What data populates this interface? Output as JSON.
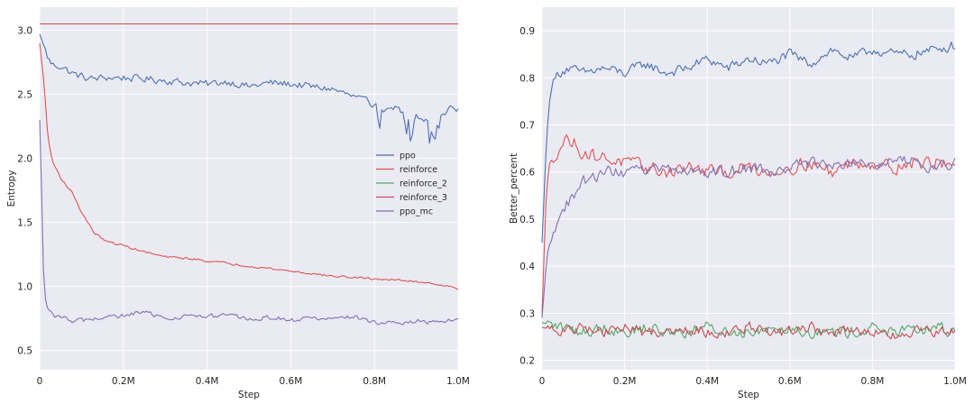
{
  "chart_data": [
    {
      "type": "line",
      "title": "",
      "xlabel": "Step",
      "ylabel": "Entropy",
      "xlim": [
        0,
        1000000
      ],
      "ylim": [
        0.35,
        3.18
      ],
      "xticks": [
        0,
        200000,
        400000,
        600000,
        800000,
        1000000
      ],
      "xtick_labels": [
        "0",
        "0.2M",
        "0.4M",
        "0.6M",
        "0.8M",
        "1.0M"
      ],
      "yticks": [
        0.5,
        1.0,
        1.5,
        2.0,
        2.5,
        3.0
      ],
      "ytick_labels": [
        "0.5",
        "1.0",
        "1.5",
        "2.0",
        "2.5",
        "3.0"
      ],
      "grid": true,
      "legend": "center-right",
      "series": [
        {
          "name": "ppo",
          "color": "#4c72b0",
          "x": [
            0,
            10000,
            20000,
            30000,
            50000,
            80000,
            120000,
            160000,
            200000,
            250000,
            300000,
            350000,
            400000,
            450000,
            500000,
            550000,
            600000,
            650000,
            700000,
            750000,
            800000,
            820000,
            850000,
            880000,
            900000,
            920000,
            940000,
            960000,
            980000,
            1000000
          ],
          "values": [
            2.97,
            2.88,
            2.78,
            2.73,
            2.72,
            2.66,
            2.62,
            2.63,
            2.63,
            2.62,
            2.61,
            2.59,
            2.58,
            2.6,
            2.56,
            2.59,
            2.58,
            2.56,
            2.54,
            2.48,
            2.42,
            2.35,
            2.4,
            2.33,
            2.36,
            2.3,
            2.2,
            2.32,
            2.38,
            2.37
          ]
        },
        {
          "name": "reinforce",
          "color": "#dd5555",
          "x": [
            0,
            10000,
            20000,
            30000,
            50000,
            80000,
            100000,
            130000,
            160000,
            200000,
            250000,
            300000,
            350000,
            400000,
            450000,
            500000,
            550000,
            600000,
            650000,
            700000,
            750000,
            800000,
            850000,
            900000,
            950000,
            1000000
          ],
          "values": [
            2.9,
            2.6,
            2.15,
            1.98,
            1.85,
            1.72,
            1.58,
            1.42,
            1.35,
            1.32,
            1.27,
            1.23,
            1.22,
            1.2,
            1.18,
            1.16,
            1.14,
            1.12,
            1.1,
            1.08,
            1.07,
            1.06,
            1.05,
            1.04,
            1.02,
            0.98
          ]
        },
        {
          "name": "reinforce_2",
          "color": "#55a868",
          "x": [
            0,
            1000000
          ],
          "values": [
            3.05,
            3.05
          ]
        },
        {
          "name": "reinforce_3",
          "color": "#c44e52",
          "x": [
            0,
            1000000
          ],
          "values": [
            3.05,
            3.05
          ]
        },
        {
          "name": "ppo_mc",
          "color": "#8172b2",
          "x": [
            0,
            5000,
            10000,
            15000,
            20000,
            30000,
            50000,
            80000,
            120000,
            160000,
            200000,
            250000,
            300000,
            350000,
            400000,
            450000,
            500000,
            550000,
            600000,
            650000,
            700000,
            750000,
            800000,
            850000,
            900000,
            950000,
            1000000
          ],
          "values": [
            2.3,
            1.7,
            1.0,
            0.86,
            0.82,
            0.78,
            0.76,
            0.73,
            0.74,
            0.76,
            0.77,
            0.8,
            0.75,
            0.77,
            0.76,
            0.78,
            0.74,
            0.76,
            0.74,
            0.75,
            0.75,
            0.76,
            0.72,
            0.71,
            0.73,
            0.72,
            0.74
          ]
        }
      ]
    },
    {
      "type": "line",
      "title": "",
      "xlabel": "Step",
      "ylabel": "Better_percent",
      "xlim": [
        0,
        1000000
      ],
      "ylim": [
        0.18,
        0.95
      ],
      "xticks": [
        0,
        200000,
        400000,
        600000,
        800000,
        1000000
      ],
      "xtick_labels": [
        "0",
        "0.2M",
        "0.4M",
        "0.6M",
        "0.8M",
        "1.0M"
      ],
      "yticks": [
        0.2,
        0.3,
        0.4,
        0.5,
        0.6,
        0.7,
        0.8,
        0.9
      ],
      "ytick_labels": [
        "0.2",
        "0.3",
        "0.4",
        "0.5",
        "0.6",
        "0.7",
        "0.8",
        "0.9"
      ],
      "grid": true,
      "series": [
        {
          "name": "ppo",
          "color": "#4c72b0",
          "x": [
            0,
            10000,
            20000,
            40000,
            60000,
            100000,
            150000,
            200000,
            250000,
            300000,
            350000,
            400000,
            450000,
            500000,
            550000,
            600000,
            650000,
            700000,
            750000,
            800000,
            850000,
            900000,
            950000,
            1000000
          ],
          "values": [
            0.45,
            0.65,
            0.78,
            0.81,
            0.82,
            0.81,
            0.82,
            0.81,
            0.83,
            0.81,
            0.82,
            0.84,
            0.82,
            0.84,
            0.83,
            0.85,
            0.83,
            0.86,
            0.84,
            0.86,
            0.85,
            0.85,
            0.86,
            0.87
          ]
        },
        {
          "name": "reinforce",
          "color": "#dd5555",
          "x": [
            0,
            10000,
            20000,
            40000,
            60000,
            80000,
            100000,
            150000,
            200000,
            250000,
            300000,
            350000,
            400000,
            450000,
            500000,
            550000,
            600000,
            650000,
            700000,
            750000,
            800000,
            850000,
            900000,
            950000,
            1000000
          ],
          "values": [
            0.3,
            0.55,
            0.62,
            0.65,
            0.67,
            0.66,
            0.64,
            0.63,
            0.62,
            0.61,
            0.6,
            0.61,
            0.6,
            0.6,
            0.61,
            0.6,
            0.61,
            0.62,
            0.6,
            0.62,
            0.62,
            0.61,
            0.62,
            0.62,
            0.62
          ]
        },
        {
          "name": "reinforce_2",
          "color": "#55a868",
          "x": [
            0,
            50000,
            100000,
            150000,
            200000,
            250000,
            300000,
            350000,
            400000,
            450000,
            500000,
            550000,
            600000,
            650000,
            700000,
            750000,
            800000,
            850000,
            900000,
            950000,
            1000000
          ],
          "values": [
            0.28,
            0.27,
            0.26,
            0.27,
            0.26,
            0.27,
            0.26,
            0.26,
            0.27,
            0.26,
            0.26,
            0.27,
            0.27,
            0.26,
            0.26,
            0.26,
            0.27,
            0.26,
            0.26,
            0.27,
            0.26
          ]
        },
        {
          "name": "reinforce_3",
          "color": "#c44e52",
          "x": [
            0,
            50000,
            100000,
            150000,
            200000,
            250000,
            300000,
            350000,
            400000,
            450000,
            500000,
            550000,
            600000,
            650000,
            700000,
            750000,
            800000,
            850000,
            900000,
            950000,
            1000000
          ],
          "values": [
            0.27,
            0.26,
            0.27,
            0.26,
            0.27,
            0.26,
            0.26,
            0.27,
            0.26,
            0.26,
            0.27,
            0.26,
            0.26,
            0.27,
            0.26,
            0.26,
            0.26,
            0.25,
            0.26,
            0.26,
            0.26
          ]
        },
        {
          "name": "ppo_mc",
          "color": "#8172b2",
          "x": [
            0,
            10000,
            20000,
            40000,
            60000,
            80000,
            100000,
            150000,
            200000,
            250000,
            300000,
            350000,
            400000,
            450000,
            500000,
            550000,
            600000,
            650000,
            700000,
            750000,
            800000,
            850000,
            900000,
            950000,
            1000000
          ],
          "values": [
            0.29,
            0.4,
            0.46,
            0.5,
            0.53,
            0.55,
            0.58,
            0.6,
            0.6,
            0.6,
            0.61,
            0.6,
            0.6,
            0.6,
            0.61,
            0.6,
            0.61,
            0.62,
            0.61,
            0.62,
            0.61,
            0.62,
            0.62,
            0.61,
            0.62
          ]
        }
      ]
    }
  ]
}
